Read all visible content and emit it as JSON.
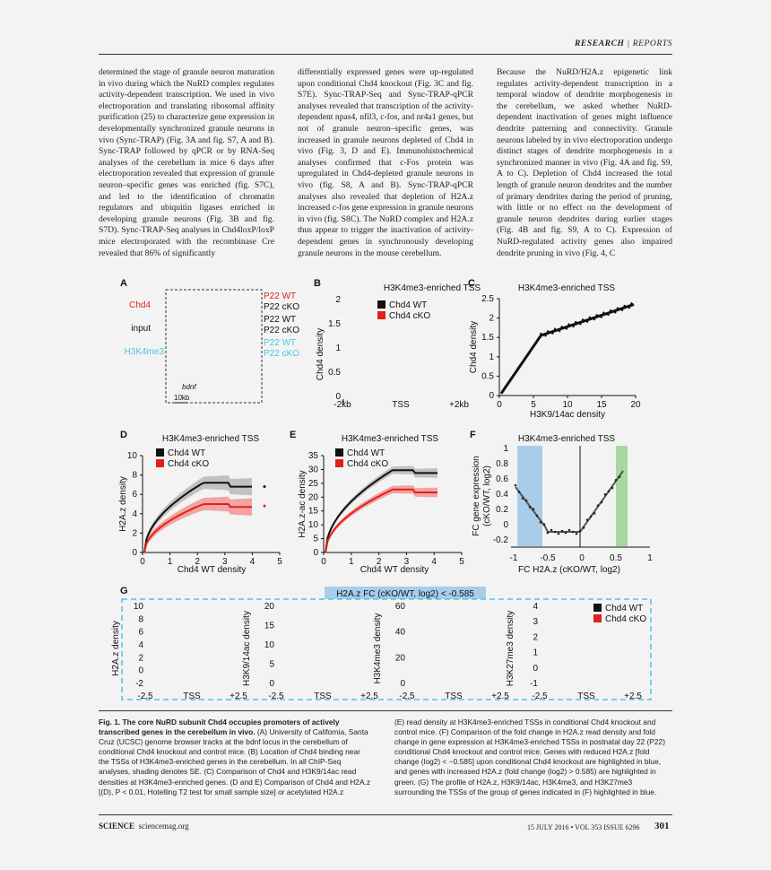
{
  "header": {
    "section": "RESEARCH",
    "sep": "|",
    "subsection": "REPORTS"
  },
  "columns": [
    "determined the stage of granule neuron maturation in vivo during which the NuRD complex regulates activity-dependent transcription. We used in vivo electroporation and translating ribosomal affinity purification (25) to characterize gene expression in developmentally synchronized granule neurons in vivo (Sync-TRAP) (Fig. 3A and fig. S7, A and B). Sync-TRAP followed by qPCR or by RNA-Seq analyses of the cerebellum in mice 6 days after electroporation revealed that expression of granule neuron–specific genes was enriched (fig. S7C), and led to the identification of chromatin regulators and ubiquitin ligases enriched in developing granule neurons (Fig. 3B and fig. S7D). Sync-TRAP-Seq analyses in Chd4loxP/loxP mice electroporated with the recombinase Cre revealed that 86% of significantly",
    "differentially expressed genes were up-regulated upon conditional Chd4 knockout (Fig. 3C and fig. S7E). Sync-TRAP-Seq and Sync-TRAP-qPCR analyses revealed that transcription of the activity-dependent npas4, nfil3, c-fos, and nr4a1 genes, but not of granule neuron–specific genes, was increased in granule neurons depleted of Chd4 in vivo (Fig. 3, D and E). Immunohistochemical analyses confirmed that c-Fos protein was upregulated in Chd4-depleted granule neurons in vivo (fig. S8, A and B). Sync-TRAP-qPCR analyses also revealed that depletion of H2A.z increased c-fos gene expression in granule neurons in vivo (fig. S8C). The NuRD complex and H2A.z thus appear to trigger the inactivation of activity-dependent genes in synchronously developing granule neurons in the mouse cerebellum.",
    "Because the NuRD/H2A.z epigenetic link regulates activity-dependent transcription in a temporal window of dendrite morphogenesis in the cerebellum, we asked whether NuRD-dependent inactivation of genes might influence dendrite patterning and connectivity. Granule neurons labeled by in vivo electroporation undergo distinct stages of dendrite morphogenesis in a synchronized manner in vivo (Fig. 4A and fig. S9, A to C). Depletion of Chd4 increased the total length of granule neuron dendrites and the number of primary dendrites during the period of pruning, with little or no effect on the development of granule neuron dendrites during earlier stages (Fig. 4B and fig. S9, A to C). Expression of NuRD-regulated activity genes also impaired dendrite pruning in vivo (Fig. 4, C"
  ],
  "figure": {
    "panelA": {
      "letter": "A",
      "tracks": [
        "Chd4",
        "input",
        "H3K4me3"
      ],
      "samples": [
        "P22 WT",
        "P22 cKO",
        "P22 WT",
        "P22 cKO",
        "P22 WT",
        "P22 cKO"
      ],
      "gene": "bdnf",
      "scale": "10kb"
    },
    "panelB": {
      "letter": "B",
      "title": "H3K4me3-enriched TSS",
      "ylabel": "Chd4 density",
      "yticks": [
        "2",
        "1.5",
        "1",
        "0.5",
        "0"
      ],
      "xticks": [
        "-2kb",
        "TSS",
        "+2kb"
      ],
      "legend": [
        "Chd4 WT",
        "Chd4 cKO"
      ]
    },
    "panelC": {
      "letter": "C",
      "title": "H3K4me3-enriched TSS",
      "ylabel": "Chd4 density",
      "xlabel": "H3K9/14ac density",
      "yticks": [
        "2.5",
        "2",
        "1.5",
        "1",
        "0.5",
        "0"
      ],
      "xticks": [
        "0",
        "5",
        "10",
        "15",
        "20"
      ]
    },
    "panelD": {
      "letter": "D",
      "title": "H3K4me3-enriched TSS",
      "ylabel": "H2A.z density",
      "xlabel": "Chd4 WT density",
      "yticks": [
        "10",
        "8",
        "6",
        "4",
        "2",
        "0"
      ],
      "xticks": [
        "0",
        "1",
        "2",
        "3",
        "4",
        "5"
      ],
      "legend": [
        "Chd4 WT",
        "Chd4 cKO"
      ]
    },
    "panelE": {
      "letter": "E",
      "title": "H3K4me3-enriched TSS",
      "ylabel": "H2A.z-ac density",
      "xlabel": "Chd4 WT density",
      "yticks": [
        "35",
        "30",
        "25",
        "20",
        "15",
        "10",
        "5",
        "0"
      ],
      "xticks": [
        "0",
        "1",
        "2",
        "3",
        "4",
        "5"
      ],
      "legend": [
        "Chd4 WT",
        "Chd4 cKO"
      ]
    },
    "panelF": {
      "letter": "F",
      "title": "H3K4me3-enriched TSS",
      "ylabel1": "FC gene expression",
      "ylabel2": "(cKO/WT, log2)",
      "xlabel": "FC H2A.z (cKO/WT, log2)",
      "yticks": [
        "1",
        "0.8",
        "0.6",
        "0.4",
        "0.2",
        "0",
        "-0.2"
      ],
      "xticks": [
        "-1",
        "-0.5",
        "0",
        "0.5",
        "1"
      ]
    },
    "panelG": {
      "letter": "G",
      "banner": "H2A.z FC (cKO/WT, log2) < -0.585",
      "legend": [
        "Chd4 WT",
        "Chd4 cKO"
      ],
      "plots": [
        {
          "ylabel": "H2A.z density",
          "yticks": [
            "10",
            "8",
            "6",
            "4",
            "2",
            "0",
            "-2"
          ]
        },
        {
          "ylabel": "H3K9/14ac density",
          "yticks": [
            "20",
            "15",
            "10",
            "5",
            "0"
          ]
        },
        {
          "ylabel": "H3K4me3 density",
          "yticks": [
            "60",
            "40",
            "20",
            "0"
          ]
        },
        {
          "ylabel": "H3K27me3 density",
          "yticks": [
            "4",
            "3",
            "2",
            "1",
            "0",
            "-1"
          ]
        }
      ],
      "xticks": [
        "-2.5",
        "TSS",
        "+2.5"
      ]
    }
  },
  "caption": {
    "title": "Fig. 1. The core NuRD subunit Chd4 occupies promoters of actively transcribed genes in the cerebellum in vivo.",
    "left": "(A) University of California, Santa Cruz (UCSC) genome browser tracks at the bdnf locus in the cerebellum of conditional Chd4 knockout and control mice. (B) Location of Chd4 binding near the TSSs of H3K4me3-enriched genes in the cerebellum. In all ChIP-Seq analyses, shading denotes SE. (C) Comparison of Chd4 and H3K9/14ac read densities at H3K4me3-enriched genes. (D and E) Comparison of Chd4 and H2A.z [(D), P < 0.01, Hotelling T2 test for small sample size] or acetylated H2A.z",
    "right": "(E) read density at H3K4me3-enriched TSSs in conditional Chd4 knockout and control mice. (F) Comparison of the fold change in H2A.z read density and fold change in gene expression at H3K4me3-enriched TSSs in postnatal day 22 (P22) conditional Chd4 knockout and control mice. Genes with reduced H2A.z [fold change (log2) < −0.585] upon conditional Chd4 knockout are highlighted in blue, and genes with increased H2A.z (fold change (log2) > 0.585) are highlighted in green. (G) The profile of H2A.z, H3K9/14ac, H3K4me3, and H3K27me3 surrounding the TSSs of the group of genes indicated in (F) highlighted in blue."
  },
  "footer": {
    "journal": "SCIENCE",
    "site": "sciencemag.org",
    "issue": "15 JULY 2016 • VOL 353 ISSUE 6296",
    "page": "301"
  },
  "colors": {
    "wt": "#111111",
    "cko": "#e0201e",
    "blue": "#a8cdea",
    "green": "#a9d7a0",
    "cyan": "#4cc3e8"
  }
}
